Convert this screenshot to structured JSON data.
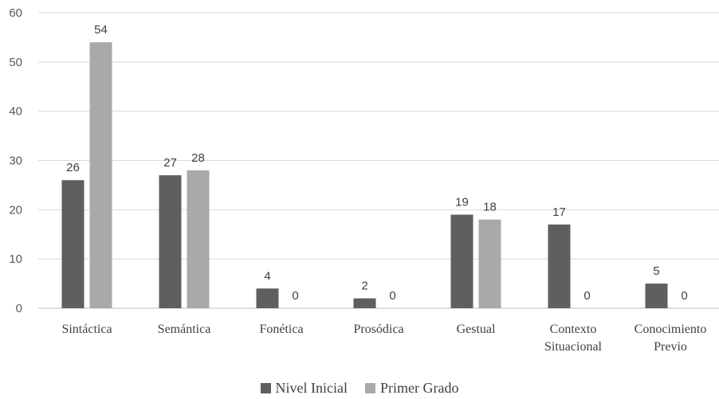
{
  "chart_data": {
    "type": "bar",
    "categories": [
      [
        "Sintáctica"
      ],
      [
        "Semántica"
      ],
      [
        "Fonética"
      ],
      [
        "Prosódica"
      ],
      [
        "Gestual"
      ],
      [
        "Contexto",
        "Situacional"
      ],
      [
        "Conocimiento",
        "Previo"
      ]
    ],
    "series": [
      {
        "name": "Nivel Inicial",
        "color": "#5f5f5f",
        "values": [
          26,
          27,
          4,
          2,
          19,
          17,
          5
        ]
      },
      {
        "name": "Primer Grado",
        "color": "#a9a9a9",
        "values": [
          54,
          28,
          0,
          0,
          18,
          0,
          0
        ]
      }
    ],
    "ylim": [
      0,
      60
    ],
    "yticks": [
      0,
      10,
      20,
      30,
      40,
      50,
      60
    ],
    "grid": true,
    "legend_position": "bottom"
  }
}
